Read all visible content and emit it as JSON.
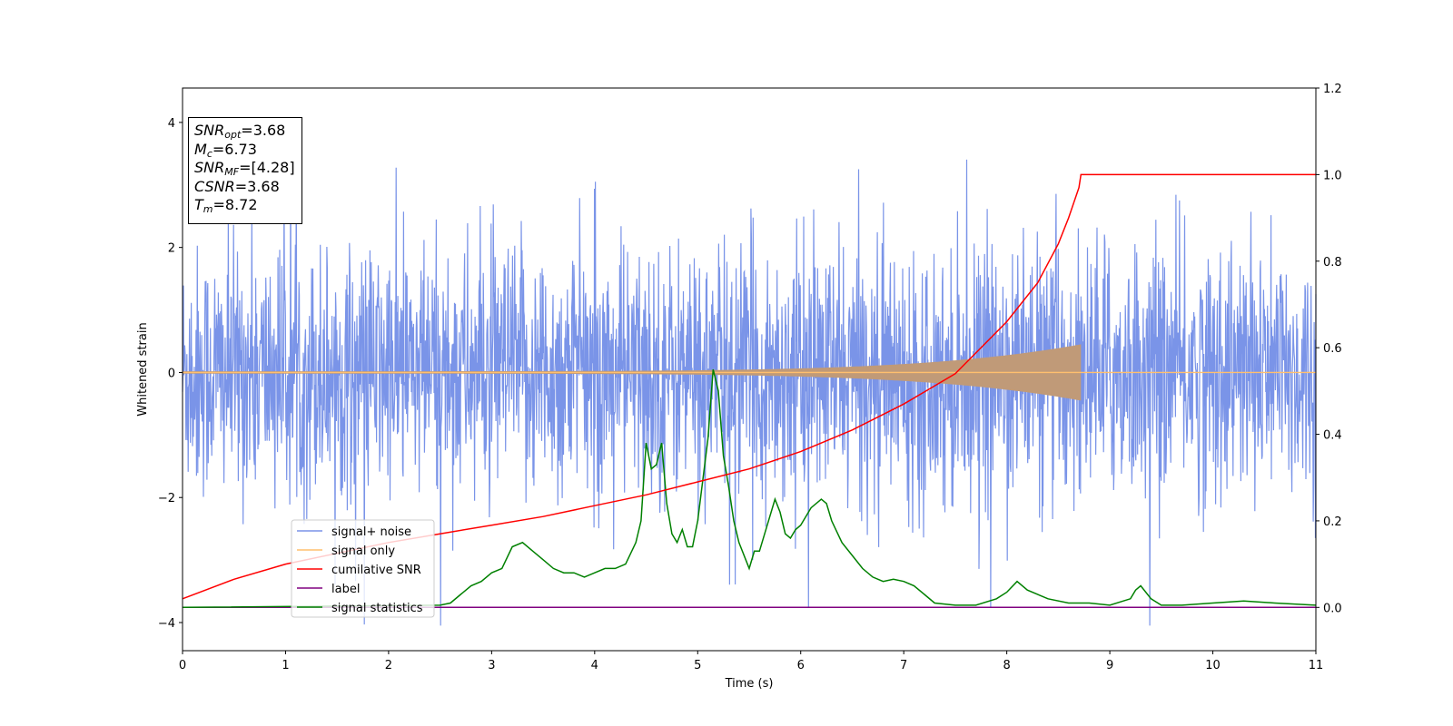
{
  "chart_data": {
    "type": "line",
    "xlabel": "Time (s)",
    "ylabel": "Whitened strain",
    "xlim": [
      0,
      11
    ],
    "ylim_left": [
      -4.45,
      4.55
    ],
    "ylim_right": [
      -0.1,
      1.2
    ],
    "x_ticks": [
      "0",
      "1",
      "2",
      "3",
      "4",
      "5",
      "6",
      "7",
      "8",
      "9",
      "10",
      "11"
    ],
    "y_ticks_left": [
      "−4",
      "−2",
      "0",
      "2",
      "4"
    ],
    "y_ticks_right": [
      "0.0",
      "0.2",
      "0.4",
      "0.6",
      "0.8",
      "1.0",
      "1.2"
    ],
    "legend_position": "lower-left",
    "series": [
      {
        "name": "signal+ noise",
        "color": "#7a94e8",
        "axis": "left",
        "description_values": {
          "mean": 0.0,
          "typical_range": [
            -2.5,
            2.5
          ],
          "max": 4.15,
          "min": -4.05
        }
      },
      {
        "name": "signal only",
        "color": "#ffbf6e",
        "axis": "left",
        "chirp_end_x": 8.72,
        "peak_amplitude": 0.45
      },
      {
        "name": "cumilative SNR",
        "color": "#ff0000",
        "axis": "right",
        "x": [
          0,
          0.5,
          1,
          1.5,
          2,
          2.5,
          3,
          3.5,
          4,
          4.5,
          5,
          5.5,
          6,
          6.5,
          7,
          7.5,
          8,
          8.3,
          8.5,
          8.6,
          8.7,
          8.72,
          11
        ],
        "y": [
          0.02,
          0.065,
          0.1,
          0.125,
          0.15,
          0.17,
          0.19,
          0.21,
          0.235,
          0.26,
          0.29,
          0.32,
          0.36,
          0.41,
          0.47,
          0.54,
          0.66,
          0.75,
          0.84,
          0.9,
          0.97,
          1.0,
          1.0
        ]
      },
      {
        "name": "label",
        "color": "#800080",
        "axis": "right",
        "x": [
          0,
          11
        ],
        "y": [
          0.0,
          0.0
        ]
      },
      {
        "name": "signal statistics",
        "color": "#008000",
        "axis": "right",
        "x": [
          0,
          2.5,
          2.6,
          2.7,
          2.8,
          2.9,
          3.0,
          3.1,
          3.2,
          3.3,
          3.4,
          3.5,
          3.6,
          3.7,
          3.8,
          3.9,
          4.0,
          4.1,
          4.2,
          4.3,
          4.4,
          4.45,
          4.5,
          4.55,
          4.6,
          4.65,
          4.7,
          4.75,
          4.8,
          4.85,
          4.9,
          4.95,
          5.0,
          5.1,
          5.15,
          5.2,
          5.25,
          5.3,
          5.35,
          5.4,
          5.5,
          5.55,
          5.6,
          5.7,
          5.75,
          5.8,
          5.85,
          5.9,
          5.95,
          6.0,
          6.1,
          6.2,
          6.25,
          6.3,
          6.4,
          6.5,
          6.6,
          6.7,
          6.8,
          6.9,
          7.0,
          7.1,
          7.2,
          7.3,
          7.5,
          7.7,
          7.9,
          8.0,
          8.1,
          8.2,
          8.4,
          8.6,
          8.8,
          9.0,
          9.2,
          9.25,
          9.3,
          9.4,
          9.5,
          9.7,
          10.0,
          10.3,
          10.6,
          11.0
        ],
        "y": [
          0.0,
          0.005,
          0.01,
          0.03,
          0.05,
          0.06,
          0.08,
          0.09,
          0.14,
          0.15,
          0.13,
          0.11,
          0.09,
          0.08,
          0.08,
          0.07,
          0.08,
          0.09,
          0.09,
          0.1,
          0.15,
          0.2,
          0.38,
          0.32,
          0.33,
          0.38,
          0.24,
          0.17,
          0.15,
          0.18,
          0.14,
          0.14,
          0.2,
          0.39,
          0.55,
          0.5,
          0.35,
          0.28,
          0.2,
          0.15,
          0.09,
          0.13,
          0.13,
          0.21,
          0.25,
          0.22,
          0.17,
          0.16,
          0.18,
          0.19,
          0.23,
          0.25,
          0.24,
          0.2,
          0.15,
          0.12,
          0.09,
          0.07,
          0.06,
          0.065,
          0.06,
          0.05,
          0.03,
          0.01,
          0.005,
          0.005,
          0.02,
          0.035,
          0.06,
          0.04,
          0.02,
          0.01,
          0.01,
          0.005,
          0.02,
          0.04,
          0.05,
          0.02,
          0.005,
          0.005,
          0.01,
          0.015,
          0.01,
          0.005
        ]
      }
    ]
  },
  "info_box": {
    "snr_opt": "=3.68",
    "mc": "=6.73",
    "snr_mf": "=[4.28]",
    "csnr": "=3.68",
    "tm": "=8.72"
  }
}
